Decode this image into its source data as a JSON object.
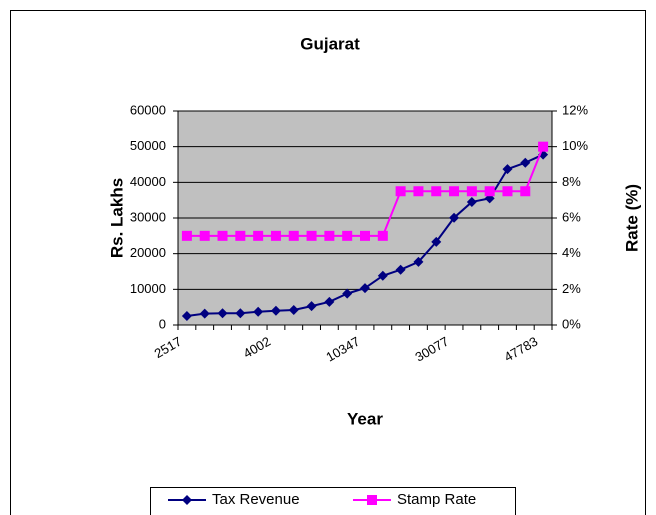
{
  "chart_data": {
    "type": "line",
    "title": "Gujarat",
    "x_label": "Year",
    "y_label": "Rs.  Lakhs",
    "y2_label": "Rate (%)",
    "categories": [
      "2517",
      null,
      null,
      null,
      null,
      "4002",
      null,
      null,
      null,
      null,
      "10347",
      null,
      null,
      null,
      null,
      "30077",
      null,
      null,
      null,
      null,
      "47783"
    ],
    "series": [
      {
        "name": "Tax Revenue",
        "color": "#000080",
        "marker": "diamond",
        "axis": "y",
        "values": [
          2517,
          3200,
          3300,
          3300,
          3700,
          4002,
          4200,
          5300,
          6500,
          8800,
          10347,
          13800,
          15500,
          17700,
          23300,
          30077,
          34500,
          35500,
          43700,
          45500,
          47783
        ]
      },
      {
        "name": "Stamp Rate",
        "color": "#ff00ff",
        "marker": "square",
        "axis": "y2",
        "values": [
          5,
          5,
          5,
          5,
          5,
          5,
          5,
          5,
          5,
          5,
          5,
          5,
          7.5,
          7.5,
          7.5,
          7.5,
          7.5,
          7.5,
          7.5,
          7.5,
          10
        ]
      }
    ],
    "ylim": [
      0,
      60000
    ],
    "yticks": [
      0,
      10000,
      20000,
      30000,
      40000,
      50000,
      60000
    ],
    "y2lim": [
      0,
      12
    ],
    "y2ticks": [
      {
        "value": 0,
        "label": "0%"
      },
      {
        "value": 2,
        "label": "2%"
      },
      {
        "value": 4,
        "label": "4%"
      },
      {
        "value": 6,
        "label": "6%"
      },
      {
        "value": 8,
        "label": "8%"
      },
      {
        "value": 10,
        "label": "10%"
      },
      {
        "value": 12,
        "label": "12%"
      }
    ],
    "grid": true,
    "legend": "bottom",
    "plot_background": "#c0c0c0"
  }
}
